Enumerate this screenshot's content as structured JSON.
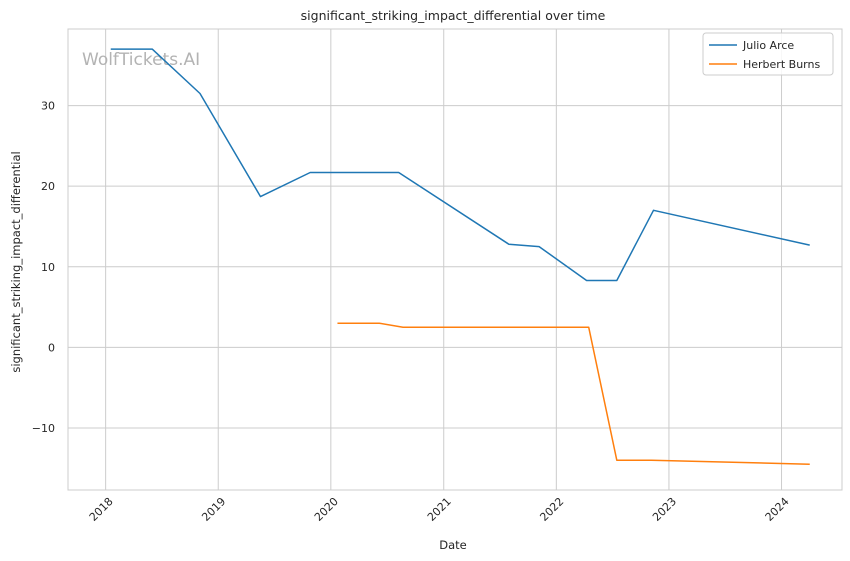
{
  "chart_data": {
    "type": "line",
    "title": "significant_striking_impact_differential over time",
    "xlabel": "Date",
    "ylabel": "significant_striking_impact_differential",
    "watermark": "WolfTickets.AI",
    "xlim": [
      "2017-09-01",
      "2024-07-15"
    ],
    "ylim": [
      -17.7,
      39.5
    ],
    "x_ticks": [
      "2018-01-01",
      "2019-01-01",
      "2020-01-01",
      "2021-01-01",
      "2022-01-01",
      "2023-01-01",
      "2024-01-01"
    ],
    "x_tick_labels": [
      "2018",
      "2019",
      "2020",
      "2021",
      "2022",
      "2023",
      "2024"
    ],
    "y_ticks": [
      -10,
      0,
      10,
      20,
      30
    ],
    "y_tick_labels": [
      "−10",
      "0",
      "10",
      "20",
      "30"
    ],
    "grid": true,
    "legend_position": "top-right",
    "series": [
      {
        "name": "Julio Arce",
        "color": "#1f77b4",
        "points": [
          {
            "x": "2018-01-20",
            "y": 37.0
          },
          {
            "x": "2018-06-01",
            "y": 37.0
          },
          {
            "x": "2018-11-03",
            "y": 31.5
          },
          {
            "x": "2019-05-18",
            "y": 18.7
          },
          {
            "x": "2019-10-26",
            "y": 21.7
          },
          {
            "x": "2020-08-08",
            "y": 21.7
          },
          {
            "x": "2021-07-31",
            "y": 12.8
          },
          {
            "x": "2021-11-06",
            "y": 12.5
          },
          {
            "x": "2022-04-09",
            "y": 8.3
          },
          {
            "x": "2022-07-16",
            "y": 8.3
          },
          {
            "x": "2022-11-12",
            "y": 17.0
          },
          {
            "x": "2024-03-30",
            "y": 12.7
          }
        ]
      },
      {
        "name": "Herbert Burns",
        "color": "#ff7f0e",
        "points": [
          {
            "x": "2020-01-25",
            "y": 3.0
          },
          {
            "x": "2020-06-06",
            "y": 3.0
          },
          {
            "x": "2020-08-22",
            "y": 2.5
          },
          {
            "x": "2022-04-16",
            "y": 2.5
          },
          {
            "x": "2022-07-16",
            "y": -14.0
          },
          {
            "x": "2022-11-05",
            "y": -14.0
          },
          {
            "x": "2024-03-30",
            "y": -14.5
          }
        ]
      }
    ]
  }
}
